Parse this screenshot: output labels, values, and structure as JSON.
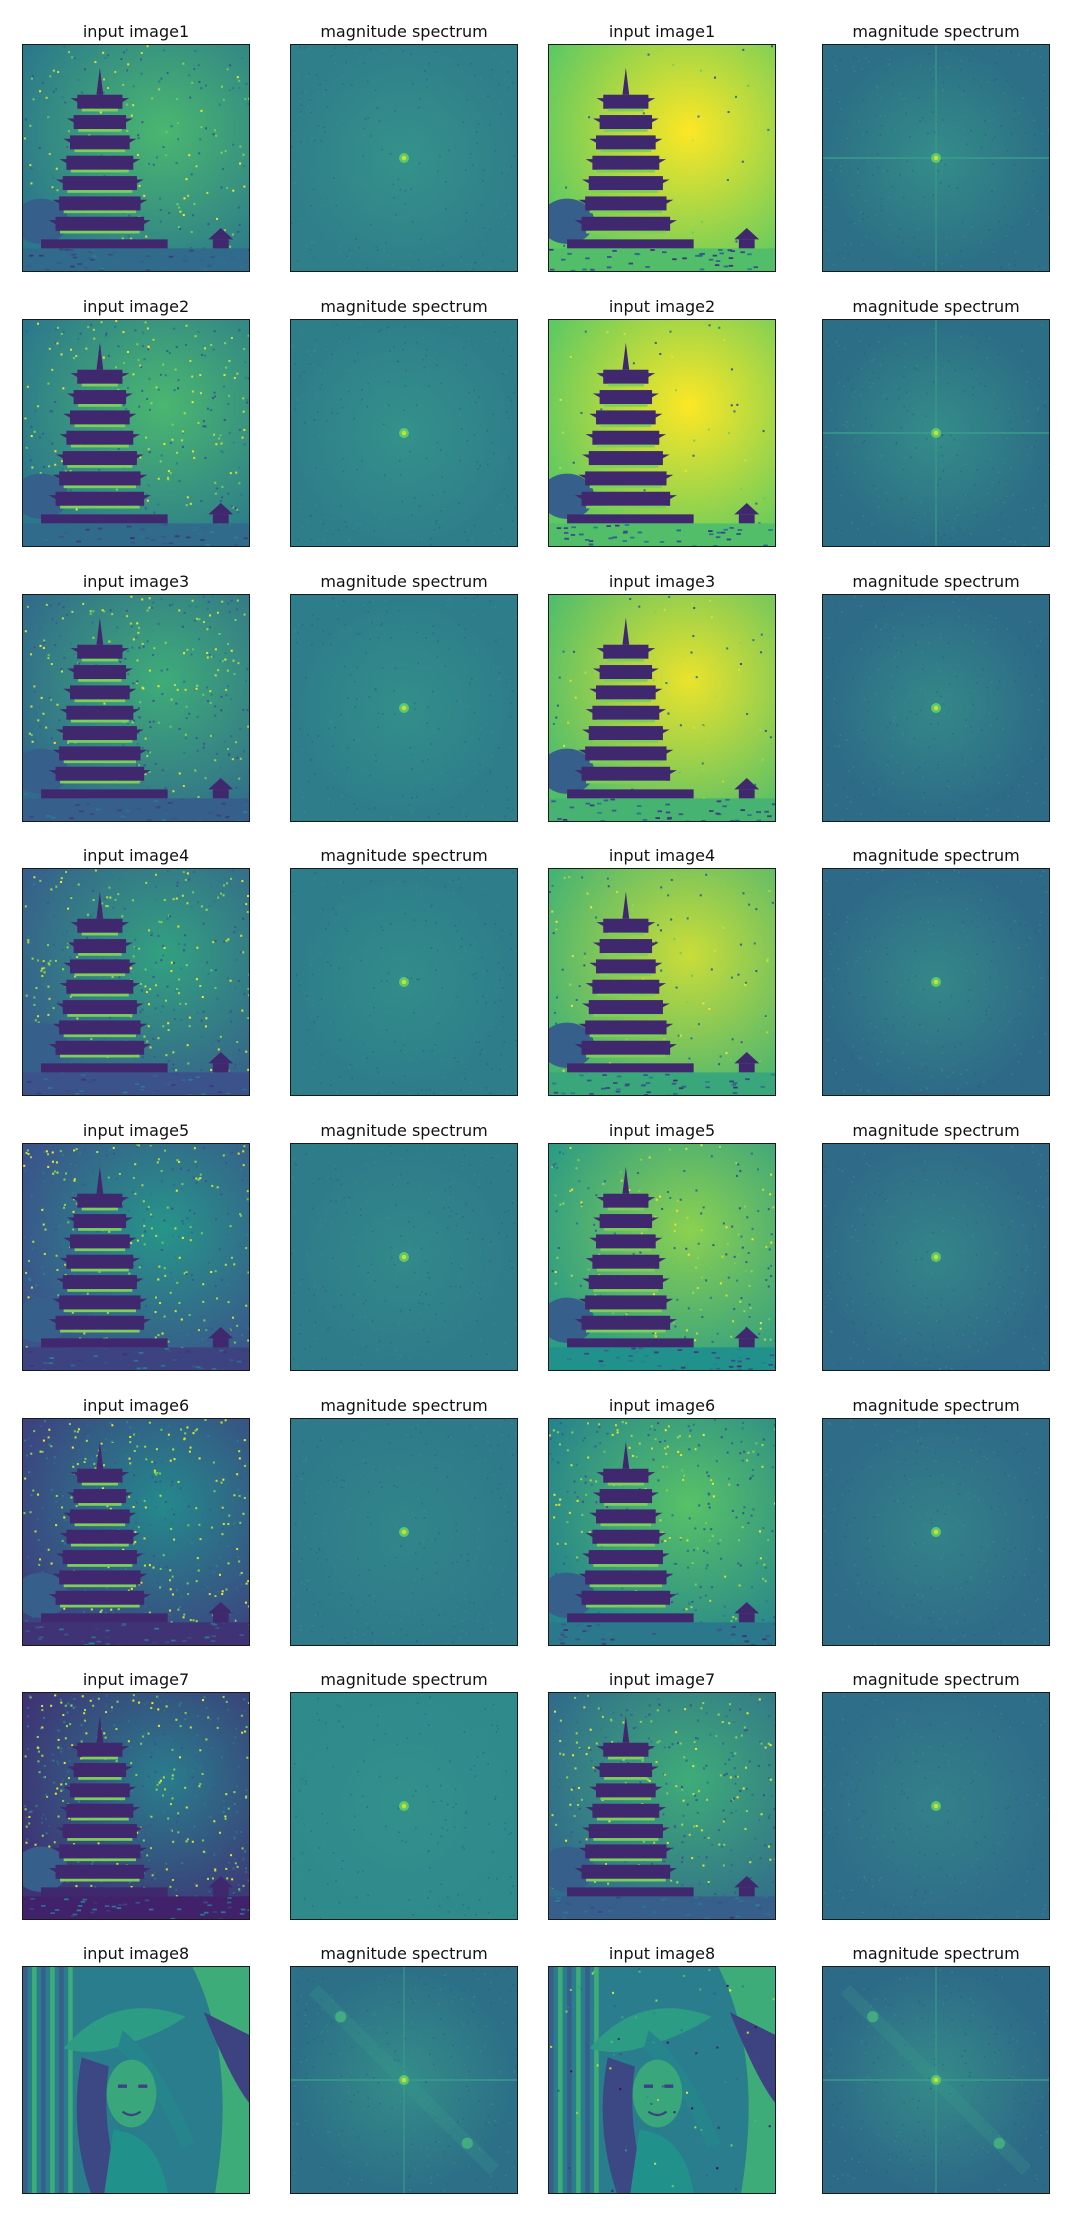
{
  "figure": {
    "rows": [
      {
        "cells": [
          {
            "title": "input image1",
            "kind": "pagoda",
            "bg_level": 0.55,
            "noise": 0.35
          },
          {
            "title": "magnitude spectrum",
            "kind": "spectrum",
            "fill": "#2f7f8a",
            "center_glow": 0.9,
            "cross": false
          },
          {
            "title": "input image1",
            "kind": "pagoda",
            "bg_level": 0.9,
            "noise": 0.05
          },
          {
            "title": "magnitude spectrum",
            "kind": "spectrum",
            "fill": "#2c6f86",
            "center_glow": 1.0,
            "cross": true
          }
        ]
      },
      {
        "cells": [
          {
            "title": "input image2",
            "kind": "pagoda",
            "bg_level": 0.55,
            "noise": 0.45
          },
          {
            "title": "magnitude spectrum",
            "kind": "spectrum",
            "fill": "#2e7e8a",
            "center_glow": 0.9,
            "cross": false
          },
          {
            "title": "input image2",
            "kind": "pagoda",
            "bg_level": 0.9,
            "noise": 0.08
          },
          {
            "title": "magnitude spectrum",
            "kind": "spectrum",
            "fill": "#2c6e86",
            "center_glow": 1.0,
            "cross": true
          }
        ]
      },
      {
        "cells": [
          {
            "title": "input image3",
            "kind": "pagoda",
            "bg_level": 0.5,
            "noise": 0.55
          },
          {
            "title": "magnitude spectrum",
            "kind": "spectrum",
            "fill": "#2d7d8a",
            "center_glow": 0.8,
            "cross": false
          },
          {
            "title": "input image3",
            "kind": "pagoda",
            "bg_level": 0.85,
            "noise": 0.12
          },
          {
            "title": "magnitude spectrum",
            "kind": "spectrum",
            "fill": "#2d6b87",
            "center_glow": 0.9,
            "cross": false
          }
        ]
      },
      {
        "cells": [
          {
            "title": "input image4",
            "kind": "pagoda",
            "bg_level": 0.45,
            "noise": 0.6
          },
          {
            "title": "magnitude spectrum",
            "kind": "spectrum",
            "fill": "#2d7d8a",
            "center_glow": 0.7,
            "cross": false
          },
          {
            "title": "input image4",
            "kind": "pagoda",
            "bg_level": 0.8,
            "noise": 0.2
          },
          {
            "title": "magnitude spectrum",
            "kind": "spectrum",
            "fill": "#2e6a87",
            "center_glow": 0.9,
            "cross": false
          }
        ]
      },
      {
        "cells": [
          {
            "title": "input image5",
            "kind": "pagoda",
            "bg_level": 0.4,
            "noise": 0.65
          },
          {
            "title": "magnitude spectrum",
            "kind": "spectrum",
            "fill": "#2e7b8a",
            "center_glow": 0.6,
            "cross": false
          },
          {
            "title": "input image5",
            "kind": "pagoda",
            "bg_level": 0.7,
            "noise": 0.35
          },
          {
            "title": "magnitude spectrum",
            "kind": "spectrum",
            "fill": "#2f6b88",
            "center_glow": 0.8,
            "cross": false
          }
        ]
      },
      {
        "cells": [
          {
            "title": "input image6",
            "kind": "pagoda",
            "bg_level": 0.35,
            "noise": 0.7
          },
          {
            "title": "magnitude spectrum",
            "kind": "spectrum",
            "fill": "#2e7a8a",
            "center_glow": 0.5,
            "cross": false
          },
          {
            "title": "input image6",
            "kind": "pagoda",
            "bg_level": 0.6,
            "noise": 0.45
          },
          {
            "title": "magnitude spectrum",
            "kind": "spectrum",
            "fill": "#2f6c88",
            "center_glow": 0.7,
            "cross": false
          }
        ]
      },
      {
        "cells": [
          {
            "title": "input image7",
            "kind": "pagoda",
            "bg_level": 0.3,
            "noise": 0.75
          },
          {
            "title": "magnitude spectrum",
            "kind": "spectrum",
            "fill": "#2f8a8c",
            "center_glow": 0.4,
            "cross": false
          },
          {
            "title": "input image7",
            "kind": "pagoda",
            "bg_level": 0.5,
            "noise": 0.55
          },
          {
            "title": "magnitude spectrum",
            "kind": "spectrum",
            "fill": "#2f6e89",
            "center_glow": 0.6,
            "cross": false
          }
        ]
      },
      {
        "cells": [
          {
            "title": "input image8",
            "kind": "portrait",
            "bg_level": 0.5,
            "noise": 0.0
          },
          {
            "title": "magnitude spectrum",
            "kind": "spectrum",
            "fill": "#2c6f87",
            "center_glow": 1.0,
            "cross": true,
            "diagonal": true
          },
          {
            "title": "input image8",
            "kind": "portrait",
            "bg_level": 0.5,
            "noise": 0.1
          },
          {
            "title": "magnitude spectrum",
            "kind": "spectrum",
            "fill": "#2d6a87",
            "center_glow": 1.0,
            "cross": true,
            "diagonal": true
          }
        ]
      }
    ]
  }
}
